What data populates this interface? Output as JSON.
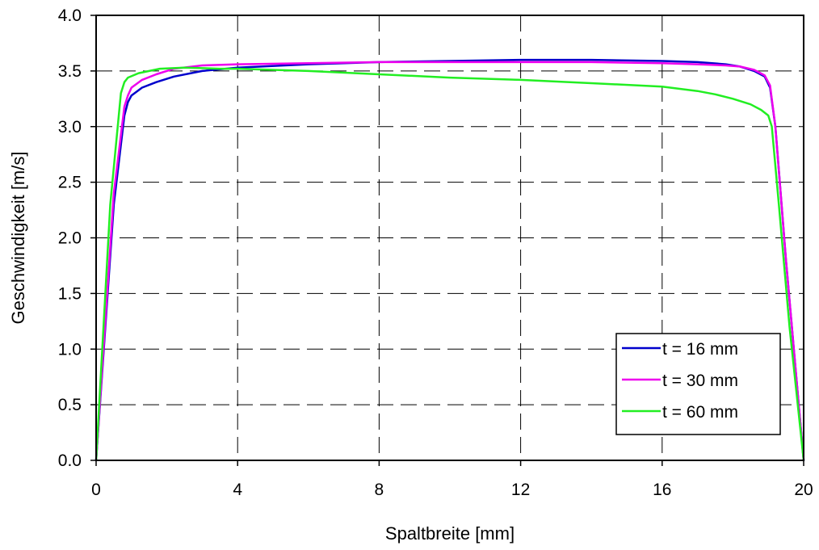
{
  "chart_data": {
    "type": "line",
    "xlabel": "Spaltbreite [mm]",
    "ylabel": "Geschwindigkeit [m/s]",
    "xlim": [
      0,
      20
    ],
    "ylim": [
      0,
      4
    ],
    "xticks": [
      0,
      4,
      8,
      12,
      16,
      20
    ],
    "yticks": [
      0.0,
      0.5,
      1.0,
      1.5,
      2.0,
      2.5,
      3.0,
      3.5,
      4.0
    ],
    "xtick_labels": [
      "0",
      "4",
      "8",
      "12",
      "16",
      "20"
    ],
    "ytick_labels": [
      "0.0",
      "0.5",
      "1.0",
      "1.5",
      "2.0",
      "2.5",
      "3.0",
      "3.5",
      "4.0"
    ],
    "grid": "dashed",
    "legend_position": "bottom-right",
    "series": [
      {
        "name": "t = 16 mm",
        "color": "#0000cc",
        "x": [
          0,
          0.5,
          0.8,
          0.9,
          1.0,
          1.3,
          1.7,
          2.2,
          3.0,
          4.0,
          6.0,
          8.0,
          10.0,
          12.0,
          14.0,
          16.0,
          17.0,
          17.8,
          18.2,
          18.6,
          18.9,
          19.05,
          19.2,
          19.5,
          20.0
        ],
        "y": [
          0,
          2.3,
          3.1,
          3.22,
          3.28,
          3.35,
          3.4,
          3.45,
          3.5,
          3.53,
          3.56,
          3.58,
          3.59,
          3.6,
          3.6,
          3.59,
          3.58,
          3.56,
          3.54,
          3.5,
          3.45,
          3.35,
          3.0,
          1.8,
          0
        ]
      },
      {
        "name": "t = 30 mm",
        "color": "#ee00ee",
        "x": [
          0,
          0.5,
          0.8,
          0.9,
          1.0,
          1.3,
          1.7,
          2.2,
          3.0,
          4.0,
          6.0,
          8.0,
          10.0,
          12.0,
          14.0,
          16.0,
          17.0,
          17.8,
          18.2,
          18.6,
          18.9,
          19.05,
          19.2,
          19.5,
          20.0
        ],
        "y": [
          0,
          2.4,
          3.18,
          3.28,
          3.35,
          3.42,
          3.47,
          3.52,
          3.55,
          3.56,
          3.57,
          3.58,
          3.58,
          3.58,
          3.58,
          3.57,
          3.56,
          3.55,
          3.54,
          3.51,
          3.46,
          3.37,
          3.0,
          1.8,
          0
        ]
      },
      {
        "name": "t = 60 mm",
        "color": "#22ee22",
        "x": [
          0,
          0.4,
          0.7,
          0.8,
          0.9,
          1.2,
          1.8,
          2.5,
          3.5,
          4.0,
          6.0,
          8.0,
          10.0,
          12.0,
          14.0,
          16.0,
          17.0,
          17.5,
          18.0,
          18.5,
          18.8,
          19.0,
          19.1,
          19.3,
          19.6,
          20.0
        ],
        "y": [
          0,
          2.3,
          3.3,
          3.4,
          3.44,
          3.48,
          3.52,
          3.53,
          3.52,
          3.52,
          3.5,
          3.47,
          3.44,
          3.42,
          3.39,
          3.36,
          3.32,
          3.29,
          3.25,
          3.2,
          3.15,
          3.1,
          3.0,
          2.3,
          1.2,
          0
        ]
      }
    ]
  }
}
